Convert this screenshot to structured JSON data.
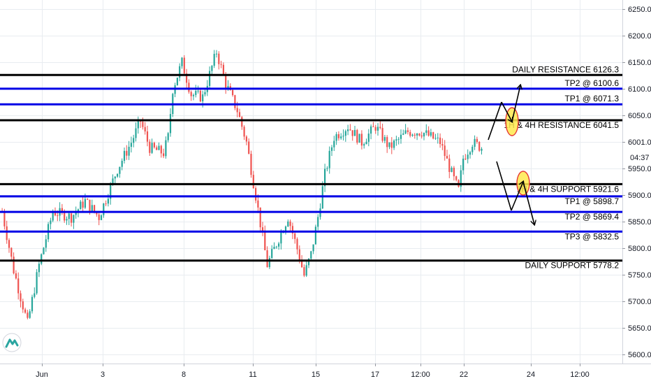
{
  "colors": {
    "up": "#26a69a",
    "down": "#ef5350",
    "resistance_line": "#000000",
    "target_line": "#0000e6",
    "annotation_fill": "#ffe94d",
    "annotation_stroke": "#e53935",
    "arrow": "#000000",
    "grid": "#e8ecf0",
    "axis_text": "#131722"
  },
  "logo": {
    "icon": "tradingview-logo-icon"
  },
  "price_axis": {
    "ticks": [
      "6250.0",
      "6200.0",
      "6150.0",
      "6100.0",
      "6050.0",
      "6001.0",
      "5950.0",
      "5900.0",
      "5850.0",
      "5800.0",
      "5750.0",
      "5700.0",
      "5650.0",
      "5600.0"
    ],
    "countdown": "04:37"
  },
  "time_axis": {
    "ticks": [
      "Jun",
      "3",
      "8",
      "11",
      "15",
      "17",
      "12:00",
      "22",
      "24",
      "12:00"
    ]
  },
  "levels": [
    {
      "label": "DAILY RESISTANCE 6126.3",
      "value": 6126.3,
      "kind": "black"
    },
    {
      "label": "TP2 @ 6100.6",
      "value": 6100.6,
      "kind": "blue"
    },
    {
      "label": "TP1 @ 6071.3",
      "value": 6071.3,
      "kind": "blue"
    },
    {
      "label": "1H & 4H RESISTANCE 6041.5",
      "value": 6041.5,
      "kind": "black"
    },
    {
      "label": "1H & 4H SUPPORT 5921.6",
      "value": 5921.6,
      "kind": "black"
    },
    {
      "label": "TP1 @ 5898.7",
      "value": 5898.7,
      "kind": "blue"
    },
    {
      "label": "TP2 @ 5869.4",
      "value": 5869.4,
      "kind": "blue"
    },
    {
      "label": "TP3 @ 5832.5",
      "value": 5832.5,
      "kind": "blue"
    },
    {
      "label": "DAILY SUPPORT 5778.2",
      "value": 5778.2,
      "kind": "black"
    }
  ],
  "chart_data": {
    "type": "candlestick",
    "title": "",
    "xlabel": "",
    "ylabel": "",
    "ylim": [
      5580,
      6270
    ],
    "grid": true,
    "path": [
      [
        0,
        5870
      ],
      [
        5,
        5760
      ],
      [
        11,
        5660
      ],
      [
        16,
        5770
      ],
      [
        22,
        5870
      ],
      [
        30,
        5860
      ],
      [
        36,
        5890
      ],
      [
        42,
        5860
      ],
      [
        50,
        5950
      ],
      [
        56,
        6000
      ],
      [
        60,
        6040
      ],
      [
        64,
        5990
      ],
      [
        70,
        5980
      ],
      [
        72,
        6010
      ],
      [
        74,
        6100
      ],
      [
        78,
        6150
      ],
      [
        82,
        6090
      ],
      [
        87,
        6085
      ],
      [
        93,
        6170
      ],
      [
        97,
        6110
      ],
      [
        102,
        6060
      ],
      [
        106,
        6000
      ],
      [
        110,
        5900
      ],
      [
        115,
        5770
      ],
      [
        120,
        5820
      ],
      [
        124,
        5860
      ],
      [
        128,
        5800
      ],
      [
        131,
        5750
      ],
      [
        134,
        5790
      ],
      [
        137,
        5860
      ],
      [
        140,
        5940
      ],
      [
        144,
        6010
      ],
      [
        150,
        6030
      ],
      [
        156,
        6000
      ],
      [
        162,
        6030
      ],
      [
        168,
        5990
      ],
      [
        176,
        6020
      ],
      [
        182,
        6020
      ],
      [
        190,
        6000
      ],
      [
        196,
        5930
      ],
      [
        198,
        5910
      ],
      [
        200,
        5970
      ],
      [
        204,
        6000
      ],
      [
        208,
        5990
      ]
    ]
  }
}
